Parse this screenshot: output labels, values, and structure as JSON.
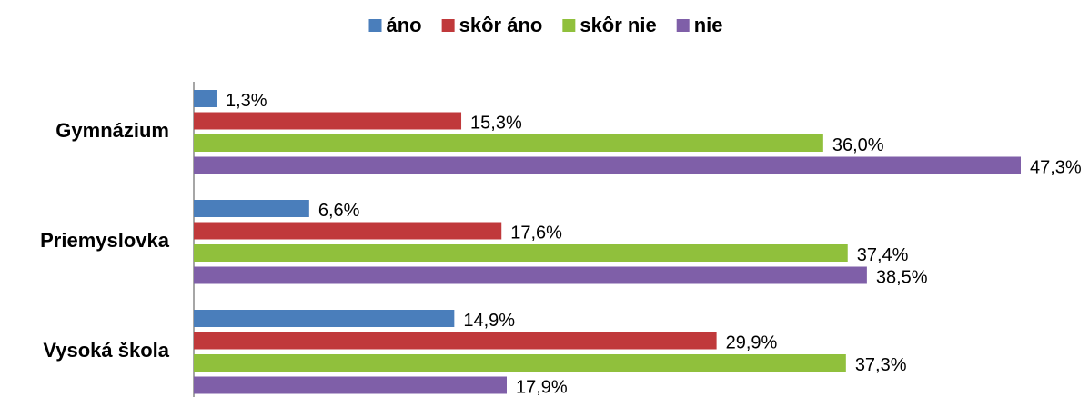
{
  "chart_data": {
    "type": "bar",
    "orientation": "horizontal",
    "categories": [
      "Gymnázium",
      "Priemyslovka",
      "Vysoká škola"
    ],
    "series": [
      {
        "name": "áno",
        "color": "#4a7ebb",
        "values": [
          1.3,
          6.6,
          14.9
        ],
        "value_labels": [
          "1,3%",
          "6,6%",
          "14,9%"
        ]
      },
      {
        "name": "skôr áno",
        "color": "#c0393b",
        "values": [
          15.3,
          17.6,
          29.9
        ],
        "value_labels": [
          "15,3%",
          "17,6%",
          "29,9%"
        ]
      },
      {
        "name": "skôr nie",
        "color": "#90c03c",
        "values": [
          36.0,
          37.4,
          37.3
        ],
        "value_labels": [
          "36,0%",
          "37,4%",
          "37,3%"
        ]
      },
      {
        "name": "nie",
        "color": "#7f5fa8",
        "values": [
          47.3,
          38.5,
          17.9
        ],
        "value_labels": [
          "47,3%",
          "38,5%",
          "17,9%"
        ]
      }
    ],
    "legend": "top"
  }
}
